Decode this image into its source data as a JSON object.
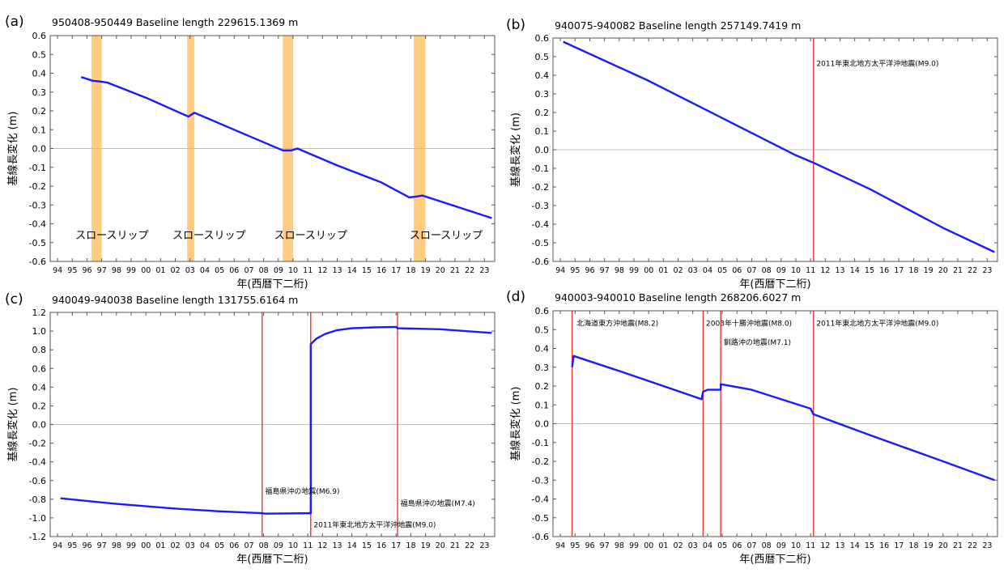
{
  "chart_data": [
    {
      "panel": "(a)",
      "type": "line",
      "title": "950408-950449  Baseline length 229615.1369 m",
      "xlabel": "年(西暦下二桁)",
      "ylabel": "基線長変化 (m)",
      "ylim": [
        -0.6,
        0.6
      ],
      "yticks": [
        0.6,
        0.5,
        0.4,
        0.3,
        0.2,
        0.1,
        0.0,
        -0.1,
        -0.2,
        -0.3,
        -0.4,
        -0.5,
        -0.6
      ],
      "ytick_labels": [
        "0.6",
        "0.5",
        "0.4",
        "0.3",
        "0.2",
        "0.1",
        "0.0",
        "-0.1",
        "-0.2",
        "-0.3",
        "-0.4",
        "-0.5",
        "-0.6"
      ],
      "xlim": [
        1993.5,
        2023.7
      ],
      "xtick_labels": [
        "94",
        "95",
        "96",
        "97",
        "98",
        "99",
        "00",
        "01",
        "02",
        "03",
        "04",
        "05",
        "06",
        "07",
        "08",
        "09",
        "10",
        "11",
        "12",
        "13",
        "14",
        "15",
        "16",
        "17",
        "18",
        "19",
        "20",
        "21",
        "22",
        "23"
      ],
      "series_color": "#1a1aff",
      "points": [
        [
          1995.6,
          0.38
        ],
        [
          1996.4,
          0.36
        ],
        [
          1997.0,
          0.355
        ],
        [
          1997.4,
          0.35
        ],
        [
          2000.0,
          0.27
        ],
        [
          2002.6,
          0.18
        ],
        [
          2002.9,
          0.17
        ],
        [
          2003.3,
          0.19
        ],
        [
          2006.0,
          0.1
        ],
        [
          2009.3,
          -0.01
        ],
        [
          2009.9,
          -0.01
        ],
        [
          2010.3,
          0.0
        ],
        [
          2013.0,
          -0.09
        ],
        [
          2016.0,
          -0.18
        ],
        [
          2017.9,
          -0.26
        ],
        [
          2018.4,
          -0.255
        ],
        [
          2018.8,
          -0.25
        ],
        [
          2023.5,
          -0.37
        ]
      ],
      "bands": [
        [
          1996.3,
          1997.0
        ],
        [
          2002.8,
          2003.3
        ],
        [
          2009.3,
          2010.0
        ],
        [
          2018.2,
          2019.0
        ]
      ],
      "band_color": "#ffcc80",
      "annotations": [
        {
          "text": "スロースリップ",
          "x": 1997.7,
          "y": -0.48
        },
        {
          "text": "スロースリップ",
          "x": 2004.3,
          "y": -0.48
        },
        {
          "text": "スロースリップ",
          "x": 2011.2,
          "y": -0.48
        },
        {
          "text": "スロースリップ",
          "x": 2020.4,
          "y": -0.48
        }
      ],
      "event_lines": [],
      "grid": "zero-line"
    },
    {
      "panel": "(b)",
      "type": "line",
      "title": "940075-940082  Baseline length 257149.7419 m",
      "xlabel": "年(西暦下二桁)",
      "ylabel": "基線長変化 (m)",
      "ylim": [
        -0.6,
        0.6
      ],
      "yticks": [
        0.6,
        0.5,
        0.4,
        0.3,
        0.2,
        0.1,
        0.0,
        -0.1,
        -0.2,
        -0.3,
        -0.4,
        -0.5,
        -0.6
      ],
      "ytick_labels": [
        "0.6",
        "0.5",
        "0.4",
        "0.3",
        "0.2",
        "0.1",
        "0.0",
        "-0.1",
        "-0.2",
        "-0.3",
        "-0.4",
        "-0.5",
        "-0.6"
      ],
      "xlim": [
        1993.5,
        2023.7
      ],
      "xtick_labels": [
        "94",
        "95",
        "96",
        "97",
        "98",
        "99",
        "00",
        "01",
        "02",
        "03",
        "04",
        "05",
        "06",
        "07",
        "08",
        "09",
        "10",
        "11",
        "12",
        "13",
        "14",
        "15",
        "16",
        "17",
        "18",
        "19",
        "20",
        "21",
        "22",
        "23"
      ],
      "series_color": "#1a1aff",
      "points": [
        [
          1994.2,
          0.58
        ],
        [
          2000.0,
          0.37
        ],
        [
          2005.0,
          0.17
        ],
        [
          2010.0,
          -0.03
        ],
        [
          2011.2,
          -0.07
        ],
        [
          2015.0,
          -0.21
        ],
        [
          2020.0,
          -0.42
        ],
        [
          2023.5,
          -0.55
        ]
      ],
      "bands": [],
      "annotations": [
        {
          "text": "2011年東北地方太平洋沖地震(M9.0)",
          "x": 2011.4,
          "y": 0.45
        }
      ],
      "event_lines": [
        2011.2
      ],
      "grid": "zero-line"
    },
    {
      "panel": "(c)",
      "type": "line",
      "title": "940049-940038  Baseline length 131755.6164 m",
      "xlabel": "年(西暦下二桁)",
      "ylabel": "基線長変化 (m)",
      "ylim": [
        -1.2,
        1.2
      ],
      "yticks": [
        1.2,
        1.0,
        0.8,
        0.6,
        0.4,
        0.2,
        0.0,
        -0.2,
        -0.4,
        -0.6,
        -0.8,
        -1.0,
        -1.2
      ],
      "ytick_labels": [
        "1.2",
        "1.0",
        "0.8",
        "0.6",
        "0.4",
        "0.2",
        "0.0",
        "-0.2",
        "-0.4",
        "-0.6",
        "-0.8",
        "-1.0",
        "-1.2"
      ],
      "xlim": [
        1993.5,
        2023.7
      ],
      "xtick_labels": [
        "94",
        "95",
        "96",
        "97",
        "98",
        "99",
        "00",
        "01",
        "02",
        "03",
        "04",
        "05",
        "06",
        "07",
        "08",
        "09",
        "10",
        "11",
        "12",
        "13",
        "14",
        "15",
        "16",
        "17",
        "18",
        "19",
        "20",
        "21",
        "22",
        "23"
      ],
      "series_color": "#1a1aff",
      "points": [
        [
          1994.2,
          -0.79
        ],
        [
          1998.0,
          -0.85
        ],
        [
          2002.0,
          -0.9
        ],
        [
          2005.0,
          -0.93
        ],
        [
          2007.9,
          -0.95
        ],
        [
          2008.1,
          -0.955
        ],
        [
          2011.2,
          -0.95
        ],
        [
          2011.2,
          0.86
        ],
        [
          2011.6,
          0.92
        ],
        [
          2012.2,
          0.97
        ],
        [
          2013.0,
          1.01
        ],
        [
          2014.0,
          1.03
        ],
        [
          2015.5,
          1.04
        ],
        [
          2017.0,
          1.045
        ],
        [
          2017.1,
          1.03
        ],
        [
          2020.0,
          1.02
        ],
        [
          2023.5,
          0.98
        ]
      ],
      "bands": [],
      "annotations": [
        {
          "text": "福島県沖の地震(M6.9)",
          "x": 2008.1,
          "y": -0.74
        },
        {
          "text": "2011年東北地方太平洋沖地震(M9.0)",
          "x": 2011.4,
          "y": -1.1
        },
        {
          "text": "福島県沖の地震(M7.4)",
          "x": 2017.3,
          "y": -0.87
        }
      ],
      "event_lines": [
        2007.9,
        2011.2,
        2017.1
      ],
      "grid": "zero-line"
    },
    {
      "panel": "(d)",
      "type": "line",
      "title": "940003-940010  Baseline length 268206.6027 m",
      "xlabel": "年(西暦下二桁)",
      "ylabel": "基線長変化 (m)",
      "ylim": [
        -0.6,
        0.6
      ],
      "yticks": [
        0.6,
        0.5,
        0.4,
        0.3,
        0.2,
        0.1,
        0.0,
        -0.1,
        -0.2,
        -0.3,
        -0.4,
        -0.5,
        -0.6
      ],
      "ytick_labels": [
        "0.6",
        "0.5",
        "0.4",
        "0.3",
        "0.2",
        "0.1",
        "0.0",
        "-0.1",
        "-0.2",
        "-0.3",
        "-0.4",
        "-0.5",
        "-0.6"
      ],
      "xlim": [
        1993.5,
        2023.7
      ],
      "xtick_labels": [
        "94",
        "95",
        "96",
        "97",
        "98",
        "99",
        "00",
        "01",
        "02",
        "03",
        "04",
        "05",
        "06",
        "07",
        "08",
        "09",
        "10",
        "11",
        "12",
        "13",
        "14",
        "15",
        "16",
        "17",
        "18",
        "19",
        "20",
        "21",
        "22",
        "23"
      ],
      "series_color": "#1a1aff",
      "points": [
        [
          1994.8,
          0.3
        ],
        [
          1994.9,
          0.36
        ],
        [
          1998.0,
          0.28
        ],
        [
          2001.0,
          0.2
        ],
        [
          2003.6,
          0.13
        ],
        [
          2003.7,
          0.17
        ],
        [
          2004.0,
          0.18
        ],
        [
          2004.9,
          0.18
        ],
        [
          2004.9,
          0.21
        ],
        [
          2007.0,
          0.18
        ],
        [
          2011.0,
          0.08
        ],
        [
          2011.2,
          0.05
        ],
        [
          2015.0,
          -0.06
        ],
        [
          2020.0,
          -0.2
        ],
        [
          2023.5,
          -0.3
        ]
      ],
      "bands": [],
      "annotations": [
        {
          "text": "北海道東方沖地震(M8.2)",
          "x": 1995.1,
          "y": 0.52
        },
        {
          "text": "2003年十勝沖地震(M8.0)",
          "x": 2003.9,
          "y": 0.52
        },
        {
          "text": "釧路沖の地震(M7.1)",
          "x": 2005.1,
          "y": 0.42
        },
        {
          "text": "2011年東北地方太平洋沖地震(M9.0)",
          "x": 2011.4,
          "y": 0.52
        }
      ],
      "event_lines": [
        1994.8,
        2003.7,
        2004.9,
        2011.2
      ],
      "grid": "zero-line"
    }
  ]
}
